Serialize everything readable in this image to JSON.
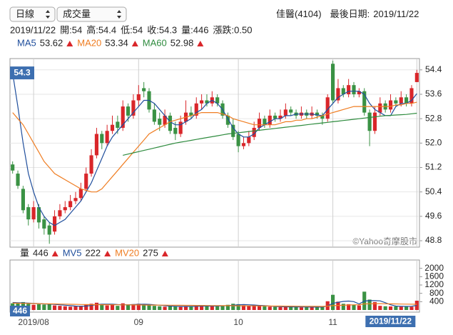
{
  "controls": [
    "日線",
    "成交量"
  ],
  "header": {
    "title": "佳醫(4104)",
    "last_date_label": "最後日期:",
    "fields": [
      "開:",
      "高:",
      "低:",
      "收:",
      "量:",
      "漲跌:"
    ],
    "change": "0.50"
  },
  "watermark": "©Yahoo奇摩股市",
  "chart_data": [
    {
      "type": "candlestick",
      "up_color": "#d9262a",
      "down_color": "#3a9244",
      "ylim": [
        48.59,
        54.77
      ],
      "yticks": [
        54.4,
        53.6,
        52.8,
        {
          "value": 52,
          "label": "52.0"
        },
        51.2,
        50.4,
        49.6,
        48.8
      ],
      "grid": true,
      "open": [
        51.3,
        51.0,
        50.5,
        49.9,
        49.5,
        49.9,
        49.5,
        49.3,
        49.1,
        49.6,
        49.8,
        49.9,
        50.1,
        50.2,
        50.5,
        51.0,
        51.6,
        52.3,
        52.0,
        52.4,
        52.7,
        52.5,
        53.2,
        52.9,
        53.4,
        53.8,
        53.7,
        53.1,
        52.8,
        52.6,
        52.9,
        52.5,
        52.3,
        52.7,
        53.0,
        52.9,
        53.3,
        53.4,
        53.3,
        53.5,
        53.3,
        52.9,
        52.6,
        52.3,
        51.9,
        52.0,
        52.2,
        52.5,
        52.8,
        52.6,
        52.9,
        52.8,
        52.9,
        53.1,
        53.0,
        52.9,
        53.0,
        52.9,
        53.0,
        52.9,
        52.8,
        54.6,
        53.4,
        53.8,
        53.6,
        53.9,
        53.6,
        53.7,
        53.0,
        52.4,
        53.0,
        53.3,
        53.1,
        53.4,
        53.3,
        53.5,
        53.3,
        54
      ],
      "high": [
        51.4,
        51.1,
        50.6,
        50.0,
        50.1,
        50.0,
        49.6,
        49.4,
        49.8,
        50.0,
        50.1,
        50.3,
        50.4,
        50.7,
        51.2,
        51.8,
        52.5,
        52.4,
        52.6,
        52.9,
        52.9,
        53.4,
        53.3,
        53.6,
        53.9,
        54.0,
        53.8,
        53.3,
        53.0,
        53.1,
        53.0,
        52.7,
        52.9,
        53.4,
        53.2,
        53.5,
        53.6,
        53.6,
        53.7,
        53.6,
        53.4,
        53.0,
        52.8,
        52.4,
        52.2,
        52.4,
        52.7,
        53.0,
        52.9,
        53.1,
        53.0,
        53.1,
        53.3,
        53.2,
        53.1,
        53.2,
        53.1,
        53.2,
        53.1,
        53.0,
        53.6,
        54.7,
        54.1,
        53.9,
        54.1,
        54.0,
        53.8,
        53.8,
        53.1,
        53.2,
        53.5,
        53.4,
        53.6,
        53.5,
        53.7,
        53.6,
        53.9,
        54.4
      ],
      "low": [
        51.0,
        50.5,
        49.7,
        49.3,
        49.4,
        49.2,
        49.0,
        48.7,
        49.0,
        49.5,
        49.7,
        49.8,
        50.0,
        50.1,
        50.4,
        50.9,
        51.5,
        51.8,
        51.9,
        52.3,
        52.3,
        52.4,
        52.7,
        52.8,
        53.2,
        53.5,
        53.0,
        52.6,
        52.4,
        52.5,
        52.3,
        52.1,
        52.2,
        52.6,
        52.8,
        52.8,
        53.1,
        53.2,
        53.2,
        53.2,
        52.8,
        52.5,
        52.1,
        51.7,
        51.8,
        51.9,
        52.1,
        52.4,
        52.5,
        52.5,
        52.7,
        52.7,
        52.8,
        52.9,
        52.8,
        52.8,
        52.8,
        52.8,
        52.8,
        52.6,
        52.7,
        53.3,
        53.3,
        53.5,
        53.5,
        53.5,
        53.5,
        52.9,
        51.9,
        52.3,
        52.9,
        53.0,
        53.0,
        53.2,
        53.2,
        53.2,
        53.2,
        54
      ],
      "close": [
        51.1,
        50.6,
        49.8,
        49.5,
        49.9,
        49.4,
        49.2,
        49.0,
        49.6,
        49.8,
        49.9,
        50.1,
        50.2,
        50.5,
        51.0,
        51.6,
        52.3,
        52.0,
        52.4,
        52.6,
        52.5,
        53.2,
        52.9,
        53.4,
        53.6,
        53.7,
        53.1,
        52.7,
        52.6,
        52.9,
        52.4,
        52.3,
        52.7,
        53.0,
        52.9,
        53.3,
        53.4,
        53.3,
        53.5,
        53.3,
        52.9,
        52.6,
        52.2,
        51.9,
        52.0,
        52.2,
        52.5,
        52.8,
        52.6,
        52.9,
        52.8,
        52.9,
        53.1,
        53.0,
        52.9,
        53.0,
        52.9,
        53.0,
        52.9,
        52.8,
        53.5,
        53.4,
        53.8,
        53.6,
        53.9,
        53.6,
        53.7,
        53.0,
        52.4,
        53.0,
        53.3,
        53.1,
        53.4,
        53.3,
        53.5,
        53.3,
        53.8,
        54.3
      ],
      "series": [
        {
          "name": "MA5",
          "color": "#1f4e9c",
          "values": [
            54.3,
            53.2,
            52.0,
            51.0,
            50.4,
            49.9,
            49.6,
            49.4,
            49.3,
            49.4,
            49.5,
            49.7,
            49.9,
            50.1,
            50.4,
            50.7,
            51.1,
            51.5,
            51.9,
            52.2,
            52.4,
            52.6,
            52.8,
            53.0,
            53.2,
            53.4,
            53.4,
            53.3,
            53.1,
            52.9,
            52.7,
            52.6,
            52.6,
            52.7,
            52.8,
            53.0,
            53.1,
            53.3,
            53.4,
            53.3,
            53.1,
            52.8,
            52.5,
            52.3,
            52.2,
            52.2,
            52.3,
            52.5,
            52.6,
            52.7,
            52.8,
            52.8,
            52.9,
            52.9,
            52.95,
            52.95,
            52.95,
            52.95,
            52.92,
            52.9,
            53.1,
            53.3,
            53.5,
            53.6,
            53.7,
            53.7,
            53.7,
            53.6,
            53.3,
            53.1,
            53.0,
            52.9,
            52.9,
            53.2,
            53.3,
            53.3,
            53.4,
            53.62
          ]
        },
        {
          "name": "MA20",
          "color": "#ef7d22",
          "values": [
            53.0,
            52.8,
            52.6,
            52.3,
            52.0,
            51.7,
            51.4,
            51.2,
            51.0,
            50.9,
            50.8,
            50.7,
            50.6,
            50.5,
            50.45,
            50.4,
            50.4,
            50.5,
            50.7,
            50.9,
            51.1,
            51.3,
            51.5,
            51.7,
            51.9,
            52.1,
            52.3,
            52.4,
            52.5,
            52.6,
            52.7,
            52.75,
            52.8,
            52.85,
            52.9,
            52.95,
            53.0,
            53.0,
            53.0,
            53.0,
            52.95,
            52.9,
            52.8,
            52.75,
            52.7,
            52.65,
            52.6,
            52.6,
            52.6,
            52.6,
            52.6,
            52.65,
            52.7,
            52.7,
            52.75,
            52.75,
            52.8,
            52.8,
            52.85,
            52.9,
            52.95,
            53.0,
            53.05,
            53.1,
            53.15,
            53.2,
            53.2,
            53.2,
            53.2,
            53.2,
            53.2,
            53.2,
            53.2,
            53.25,
            53.25,
            53.3,
            53.3,
            53.34
          ]
        },
        {
          "name": "MA60",
          "color": "#2e8b3e",
          "values": [
            null,
            null,
            null,
            null,
            null,
            null,
            null,
            null,
            null,
            null,
            null,
            null,
            null,
            null,
            null,
            null,
            null,
            null,
            null,
            null,
            null,
            51.6,
            51.64,
            51.68,
            51.72,
            51.76,
            51.8,
            51.84,
            51.88,
            51.92,
            51.96,
            52.0,
            52.03,
            52.06,
            52.09,
            52.12,
            52.15,
            52.18,
            52.21,
            52.24,
            52.27,
            52.3,
            52.32,
            52.34,
            52.36,
            52.38,
            52.4,
            52.42,
            52.44,
            52.46,
            52.48,
            52.5,
            52.52,
            52.54,
            52.56,
            52.58,
            52.6,
            52.62,
            52.64,
            52.66,
            52.68,
            52.7,
            52.72,
            52.74,
            52.76,
            52.78,
            52.8,
            52.82,
            52.84,
            52.86,
            52.88,
            52.9,
            52.91,
            52.92,
            52.93,
            52.94,
            52.96,
            52.98
          ]
        }
      ]
    },
    {
      "type": "bar",
      "label": "量",
      "categories": [
        null,
        null,
        null,
        null,
        "2019/08",
        null,
        null,
        null,
        null,
        null,
        null,
        null,
        null,
        null,
        null,
        null,
        null,
        null,
        null,
        null,
        null,
        null,
        null,
        null,
        "09",
        null,
        null,
        null,
        null,
        null,
        null,
        null,
        null,
        null,
        null,
        null,
        null,
        null,
        null,
        null,
        null,
        null,
        null,
        "10",
        null,
        null,
        null,
        null,
        null,
        null,
        null,
        null,
        null,
        null,
        null,
        null,
        null,
        null,
        null,
        null,
        null,
        "11",
        null,
        null,
        null,
        null,
        null,
        null,
        null,
        null,
        null,
        null,
        null,
        null,
        null,
        null,
        null,
        "2019/11/22"
      ],
      "values": [
        320,
        350,
        380,
        300,
        250,
        280,
        260,
        300,
        220,
        200,
        180,
        160,
        170,
        200,
        260,
        300,
        350,
        280,
        220,
        240,
        200,
        320,
        260,
        280,
        300,
        260,
        240,
        200,
        180,
        160,
        200,
        170,
        150,
        190,
        160,
        200,
        220,
        180,
        200,
        170,
        220,
        250,
        300,
        280,
        230,
        200,
        220,
        240,
        180,
        160,
        150,
        140,
        160,
        170,
        150,
        130,
        140,
        120,
        150,
        160,
        420,
        730,
        400,
        300,
        280,
        250,
        220,
        880,
        500,
        380,
        200,
        180,
        170,
        170,
        160,
        180,
        154,
        446
      ],
      "ylim": [
        0,
        2400
      ],
      "yticks": [
        2000,
        1600,
        1200,
        800,
        400
      ],
      "series": [
        {
          "name": "MV5",
          "color": "#1f4e9c",
          "values": [
            360,
            350,
            340,
            330,
            320,
            310,
            290,
            280,
            270,
            250,
            230,
            210,
            190,
            180,
            190,
            220,
            260,
            280,
            280,
            280,
            260,
            250,
            250,
            260,
            270,
            280,
            270,
            250,
            230,
            210,
            190,
            180,
            170,
            170,
            170,
            180,
            190,
            190,
            190,
            190,
            200,
            210,
            230,
            250,
            260,
            250,
            240,
            220,
            210,
            190,
            170,
            160,
            155,
            150,
            150,
            150,
            145,
            140,
            140,
            140,
            200,
            320,
            370,
            410,
            430,
            400,
            290,
            430,
            450,
            450,
            440,
            350,
            250,
            190,
            180,
            170,
            180,
            222
          ]
        },
        {
          "name": "MV20",
          "color": "#ef7d22",
          "values": [
            330,
            325,
            320,
            315,
            310,
            305,
            300,
            295,
            290,
            285,
            280,
            275,
            270,
            265,
            260,
            258,
            256,
            254,
            252,
            250,
            250,
            248,
            246,
            244,
            242,
            240,
            238,
            236,
            234,
            232,
            230,
            228,
            226,
            224,
            222,
            220,
            218,
            216,
            214,
            212,
            210,
            208,
            206,
            204,
            202,
            200,
            198,
            196,
            194,
            192,
            190,
            188,
            186,
            184,
            182,
            180,
            178,
            176,
            174,
            172,
            190,
            210,
            220,
            230,
            240,
            250,
            255,
            290,
            300,
            305,
            305,
            300,
            295,
            290,
            285,
            280,
            278,
            275
          ]
        }
      ]
    }
  ]
}
